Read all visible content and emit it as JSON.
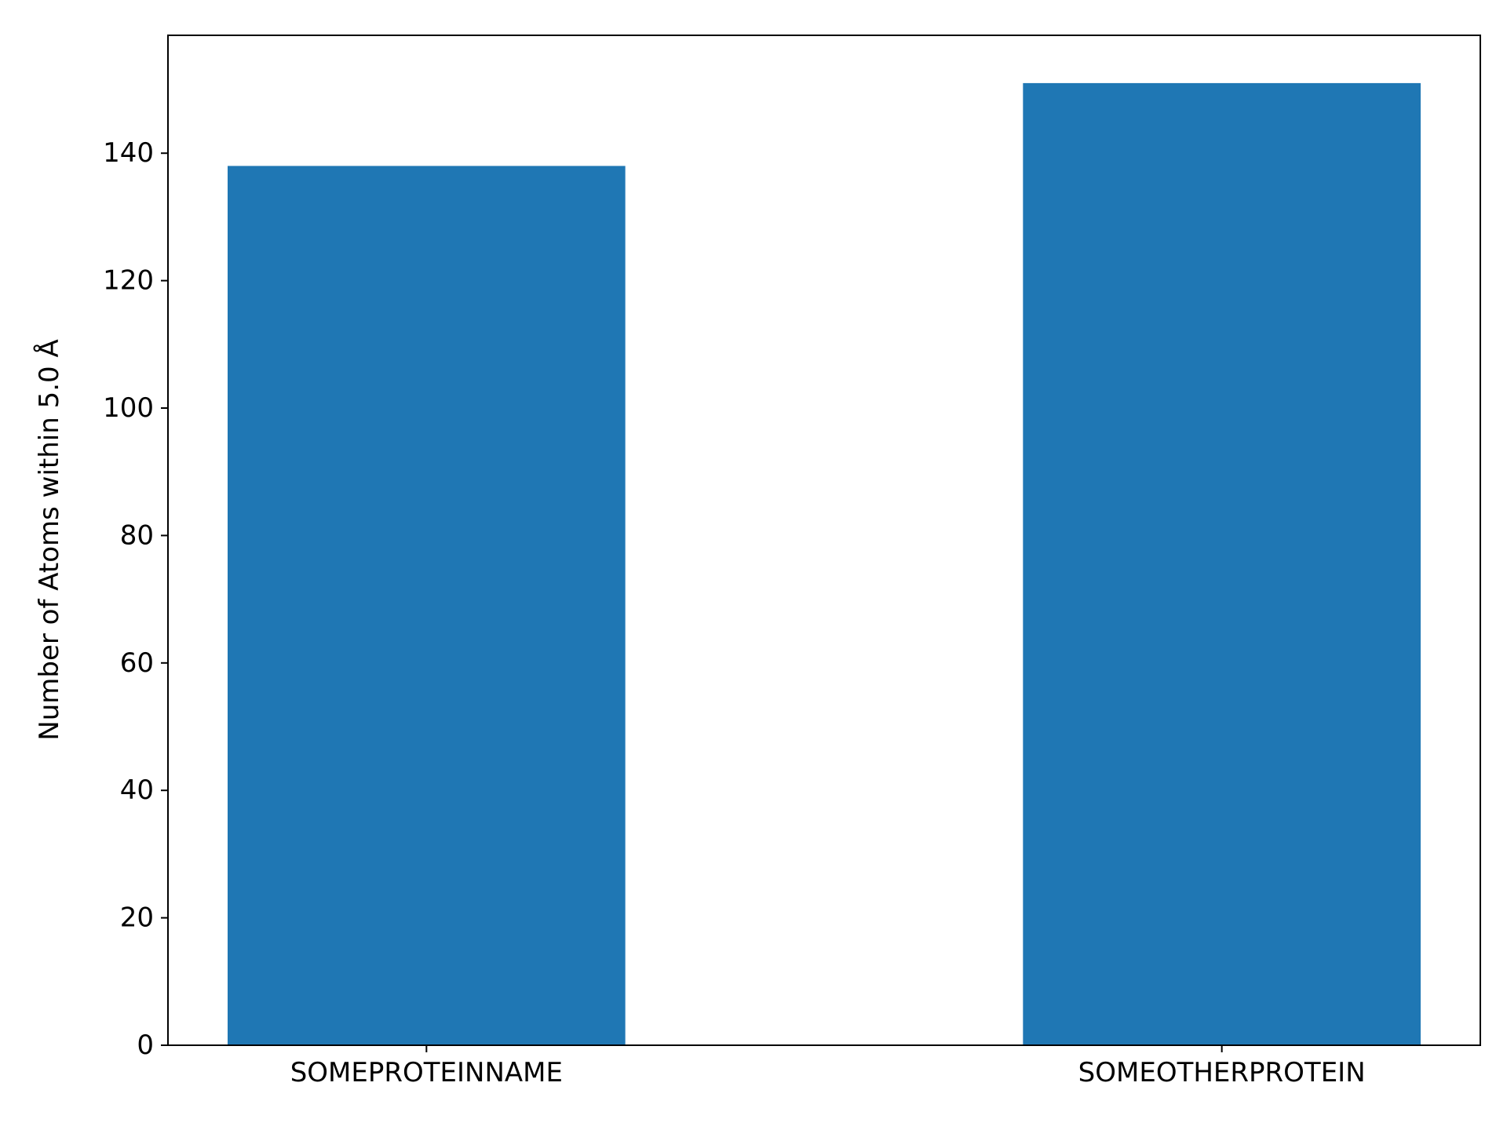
{
  "chart_data": {
    "type": "bar",
    "title": "",
    "xlabel": "",
    "ylabel": "Number of Atoms within 5.0 Å",
    "categories": [
      "SOMEPROTEINNAME",
      "SOMEOTHERPROTEIN"
    ],
    "values": [
      138,
      151
    ],
    "ylim": [
      0,
      158.5
    ],
    "yticks": [
      0,
      20,
      40,
      60,
      80,
      100,
      120,
      140
    ],
    "grid": false,
    "legend": "none",
    "bar_color": "#1f77b4"
  }
}
